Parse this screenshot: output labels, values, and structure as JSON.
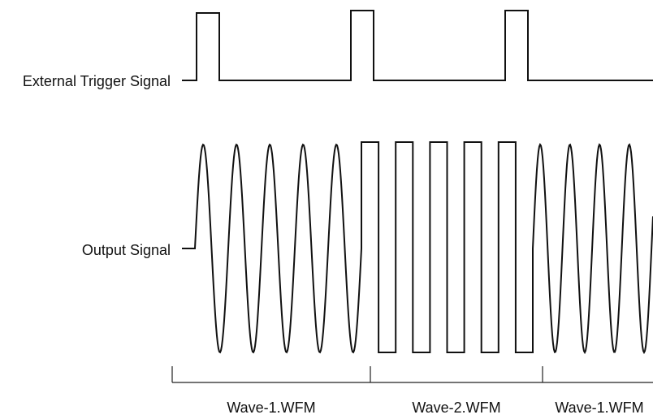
{
  "diagram": {
    "signals": {
      "trigger": {
        "label": "External Trigger Signal"
      },
      "output": {
        "label": "Output Signal"
      }
    },
    "segments": [
      {
        "label": "Wave-1.WFM",
        "waveform": "sine",
        "cycles": 5
      },
      {
        "label": "Wave-2.WFM",
        "waveform": "square",
        "cycles": 5
      },
      {
        "label": "Wave-1.WFM",
        "waveform": "sine",
        "cycles": 5
      }
    ],
    "trigger_pulses": 3,
    "colors": {
      "line": "#111111",
      "background": "#ffffff"
    }
  }
}
